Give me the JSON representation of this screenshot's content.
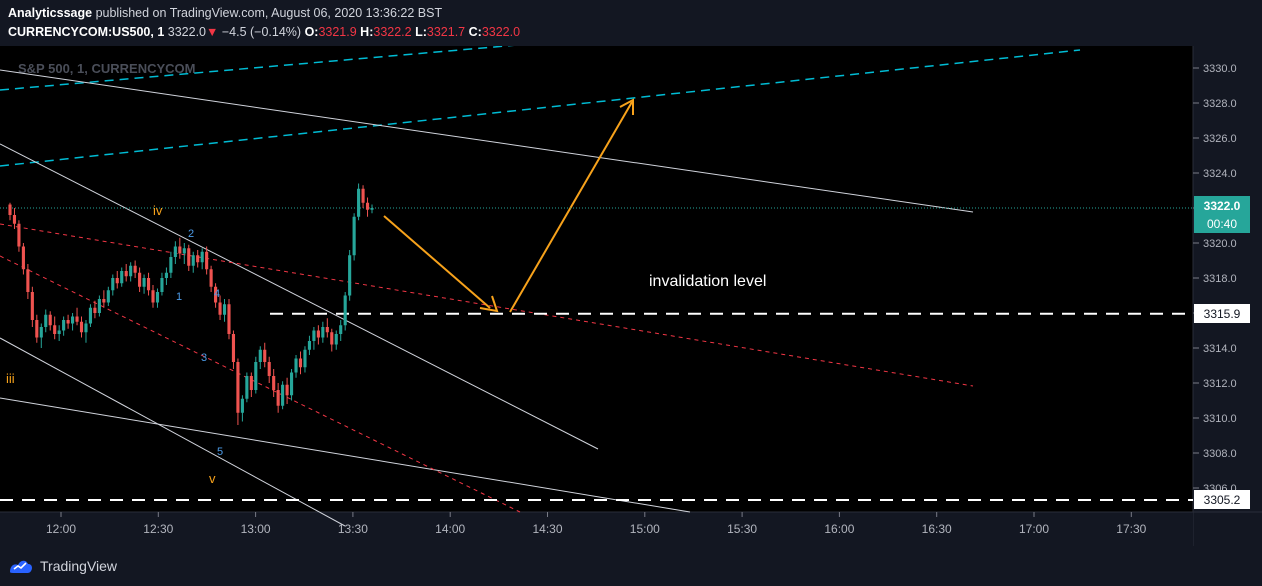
{
  "header": {
    "publisher": "Analyticssage",
    "published_text": "published on TradingView.com, August 06, 2020 13:36:22 BST",
    "symbol": "CURRENCYCOM:US500, 1",
    "price": "3322.0",
    "change": "−4.5 (−0.14%)",
    "o_label": "O:",
    "o_value": "3321.9",
    "h_label": "H:",
    "h_value": "3322.2",
    "l_label": "L:",
    "l_value": "3321.7",
    "c_label": "C:",
    "c_value": "3322.0"
  },
  "chart_data": {
    "type": "candlestick",
    "watermark": "S&P 500, 1, CURRENCYCOM",
    "x_ticks": [
      "12:00",
      "12:30",
      "13:00",
      "13:30",
      "14:00",
      "14:30",
      "15:00",
      "15:30",
      "16:00",
      "16:30",
      "17:00",
      "17:30"
    ],
    "y_ticks": [
      "3330.0",
      "3328.0",
      "3326.0",
      "3324.0",
      "3322.0",
      "3320.0",
      "3318.0",
      "3316.0",
      "3314.0",
      "3312.0",
      "3310.0",
      "3308.0",
      "3306.0"
    ],
    "ylim": [
      3304.5,
      3330.5
    ],
    "last_price": "3322.0",
    "countdown": "00:40",
    "levels": [
      {
        "label": "3315.9",
        "value": 3315.9
      },
      {
        "label": "3305.2",
        "value": 3305.2
      }
    ],
    "annotation": "invalidation level",
    "wave_labels": [
      "iii",
      "iv",
      "v",
      "1",
      "2",
      "3",
      "4",
      "5"
    ],
    "candles": [
      [
        3322.2,
        3322.3,
        3321.3,
        3321.6
      ],
      [
        3321.6,
        3322.0,
        3320.8,
        3321.1
      ],
      [
        3321.1,
        3321.3,
        3319.5,
        3319.8
      ],
      [
        3319.8,
        3320.0,
        3318.2,
        3318.5
      ],
      [
        3318.5,
        3318.8,
        3316.8,
        3317.2
      ],
      [
        3317.2,
        3317.5,
        3315.2,
        3315.6
      ],
      [
        3315.6,
        3315.9,
        3314.3,
        3314.6
      ],
      [
        3314.6,
        3315.4,
        3314.0,
        3315.2
      ],
      [
        3315.2,
        3316.2,
        3314.9,
        3315.9
      ],
      [
        3315.9,
        3316.1,
        3315.0,
        3315.3
      ],
      [
        3315.3,
        3315.8,
        3314.5,
        3314.8
      ],
      [
        3314.8,
        3315.3,
        3314.4,
        3315.0
      ],
      [
        3315.0,
        3315.8,
        3314.7,
        3315.6
      ],
      [
        3315.6,
        3315.9,
        3315.1,
        3315.4
      ],
      [
        3315.4,
        3316.0,
        3315.0,
        3315.8
      ],
      [
        3315.8,
        3316.3,
        3315.3,
        3315.5
      ],
      [
        3315.5,
        3315.8,
        3314.6,
        3314.9
      ],
      [
        3314.9,
        3315.6,
        3314.3,
        3315.4
      ],
      [
        3315.4,
        3316.5,
        3315.2,
        3316.3
      ],
      [
        3316.3,
        3316.7,
        3315.7,
        3316.0
      ],
      [
        3316.0,
        3317.0,
        3315.8,
        3316.8
      ],
      [
        3316.8,
        3317.3,
        3316.3,
        3316.6
      ],
      [
        3316.6,
        3317.5,
        3316.4,
        3317.3
      ],
      [
        3317.3,
        3318.2,
        3317.0,
        3318.0
      ],
      [
        3318.0,
        3318.4,
        3317.4,
        3317.7
      ],
      [
        3317.7,
        3318.6,
        3317.5,
        3318.4
      ],
      [
        3318.4,
        3318.8,
        3317.8,
        3318.1
      ],
      [
        3318.1,
        3318.9,
        3317.8,
        3318.7
      ],
      [
        3318.7,
        3319.0,
        3318.0,
        3318.3
      ],
      [
        3318.3,
        3318.6,
        3317.2,
        3317.5
      ],
      [
        3317.5,
        3318.2,
        3317.1,
        3318.0
      ],
      [
        3318.0,
        3318.3,
        3317.0,
        3317.3
      ],
      [
        3317.3,
        3317.6,
        3316.3,
        3316.6
      ],
      [
        3316.6,
        3317.4,
        3316.3,
        3317.2
      ],
      [
        3317.2,
        3318.3,
        3317.0,
        3318.0
      ],
      [
        3318.0,
        3318.6,
        3317.6,
        3318.3
      ],
      [
        3318.3,
        3319.5,
        3318.0,
        3319.2
      ],
      [
        3319.2,
        3320.1,
        3318.8,
        3319.8
      ],
      [
        3319.8,
        3320.3,
        3319.1,
        3319.4
      ],
      [
        3319.4,
        3320.0,
        3318.8,
        3319.7
      ],
      [
        3319.7,
        3319.9,
        3318.4,
        3318.7
      ],
      [
        3318.7,
        3319.5,
        3318.3,
        3319.3
      ],
      [
        3319.3,
        3319.6,
        3318.6,
        3318.9
      ],
      [
        3318.9,
        3319.7,
        3318.5,
        3319.5
      ],
      [
        3319.5,
        3319.8,
        3318.2,
        3318.5
      ],
      [
        3318.5,
        3318.7,
        3317.2,
        3317.5
      ],
      [
        3317.5,
        3317.7,
        3316.3,
        3316.6
      ],
      [
        3316.6,
        3317.0,
        3315.6,
        3315.9
      ],
      [
        3315.9,
        3316.8,
        3315.5,
        3316.5
      ],
      [
        3316.5,
        3316.8,
        3314.5,
        3314.8
      ],
      [
        3314.8,
        3315.0,
        3312.8,
        3313.2
      ],
      [
        3313.2,
        3313.4,
        3309.6,
        3310.3
      ],
      [
        3310.3,
        3311.3,
        3309.8,
        3311.1
      ],
      [
        3311.1,
        3312.6,
        3310.9,
        3312.4
      ],
      [
        3312.4,
        3312.6,
        3311.2,
        3311.6
      ],
      [
        3311.6,
        3313.5,
        3311.4,
        3313.2
      ],
      [
        3313.2,
        3314.1,
        3312.8,
        3313.9
      ],
      [
        3313.9,
        3314.3,
        3312.9,
        3313.2
      ],
      [
        3313.2,
        3313.5,
        3312.0,
        3312.4
      ],
      [
        3312.4,
        3312.8,
        3311.2,
        3311.6
      ],
      [
        3311.6,
        3312.0,
        3310.3,
        3310.7
      ],
      [
        3310.7,
        3312.1,
        3310.5,
        3311.9
      ],
      [
        3311.9,
        3312.3,
        3310.8,
        3311.3
      ],
      [
        3311.3,
        3312.8,
        3311.0,
        3312.6
      ],
      [
        3312.6,
        3313.6,
        3312.3,
        3313.4
      ],
      [
        3313.4,
        3313.8,
        3312.5,
        3312.9
      ],
      [
        3312.9,
        3314.1,
        3312.6,
        3313.9
      ],
      [
        3313.9,
        3314.7,
        3313.6,
        3314.4
      ],
      [
        3314.4,
        3315.2,
        3313.9,
        3315.0
      ],
      [
        3315.0,
        3315.3,
        3314.2,
        3314.6
      ],
      [
        3314.6,
        3315.5,
        3314.3,
        3315.2
      ],
      [
        3315.2,
        3315.7,
        3314.6,
        3314.9
      ],
      [
        3314.9,
        3315.1,
        3313.8,
        3314.2
      ],
      [
        3314.2,
        3315.0,
        3313.9,
        3314.8
      ],
      [
        3314.8,
        3315.6,
        3314.4,
        3315.3
      ],
      [
        3315.3,
        3317.2,
        3315.0,
        3317.0
      ],
      [
        3317.0,
        3319.6,
        3316.7,
        3319.3
      ],
      [
        3319.3,
        3321.7,
        3319.0,
        3321.5
      ],
      [
        3321.5,
        3323.4,
        3321.3,
        3323.1
      ],
      [
        3323.1,
        3323.3,
        3322.0,
        3322.3
      ],
      [
        3322.3,
        3322.6,
        3321.5,
        3321.9
      ],
      [
        3321.9,
        3322.2,
        3321.7,
        3322.0
      ]
    ]
  },
  "footer": {
    "brand": "TradingView"
  }
}
